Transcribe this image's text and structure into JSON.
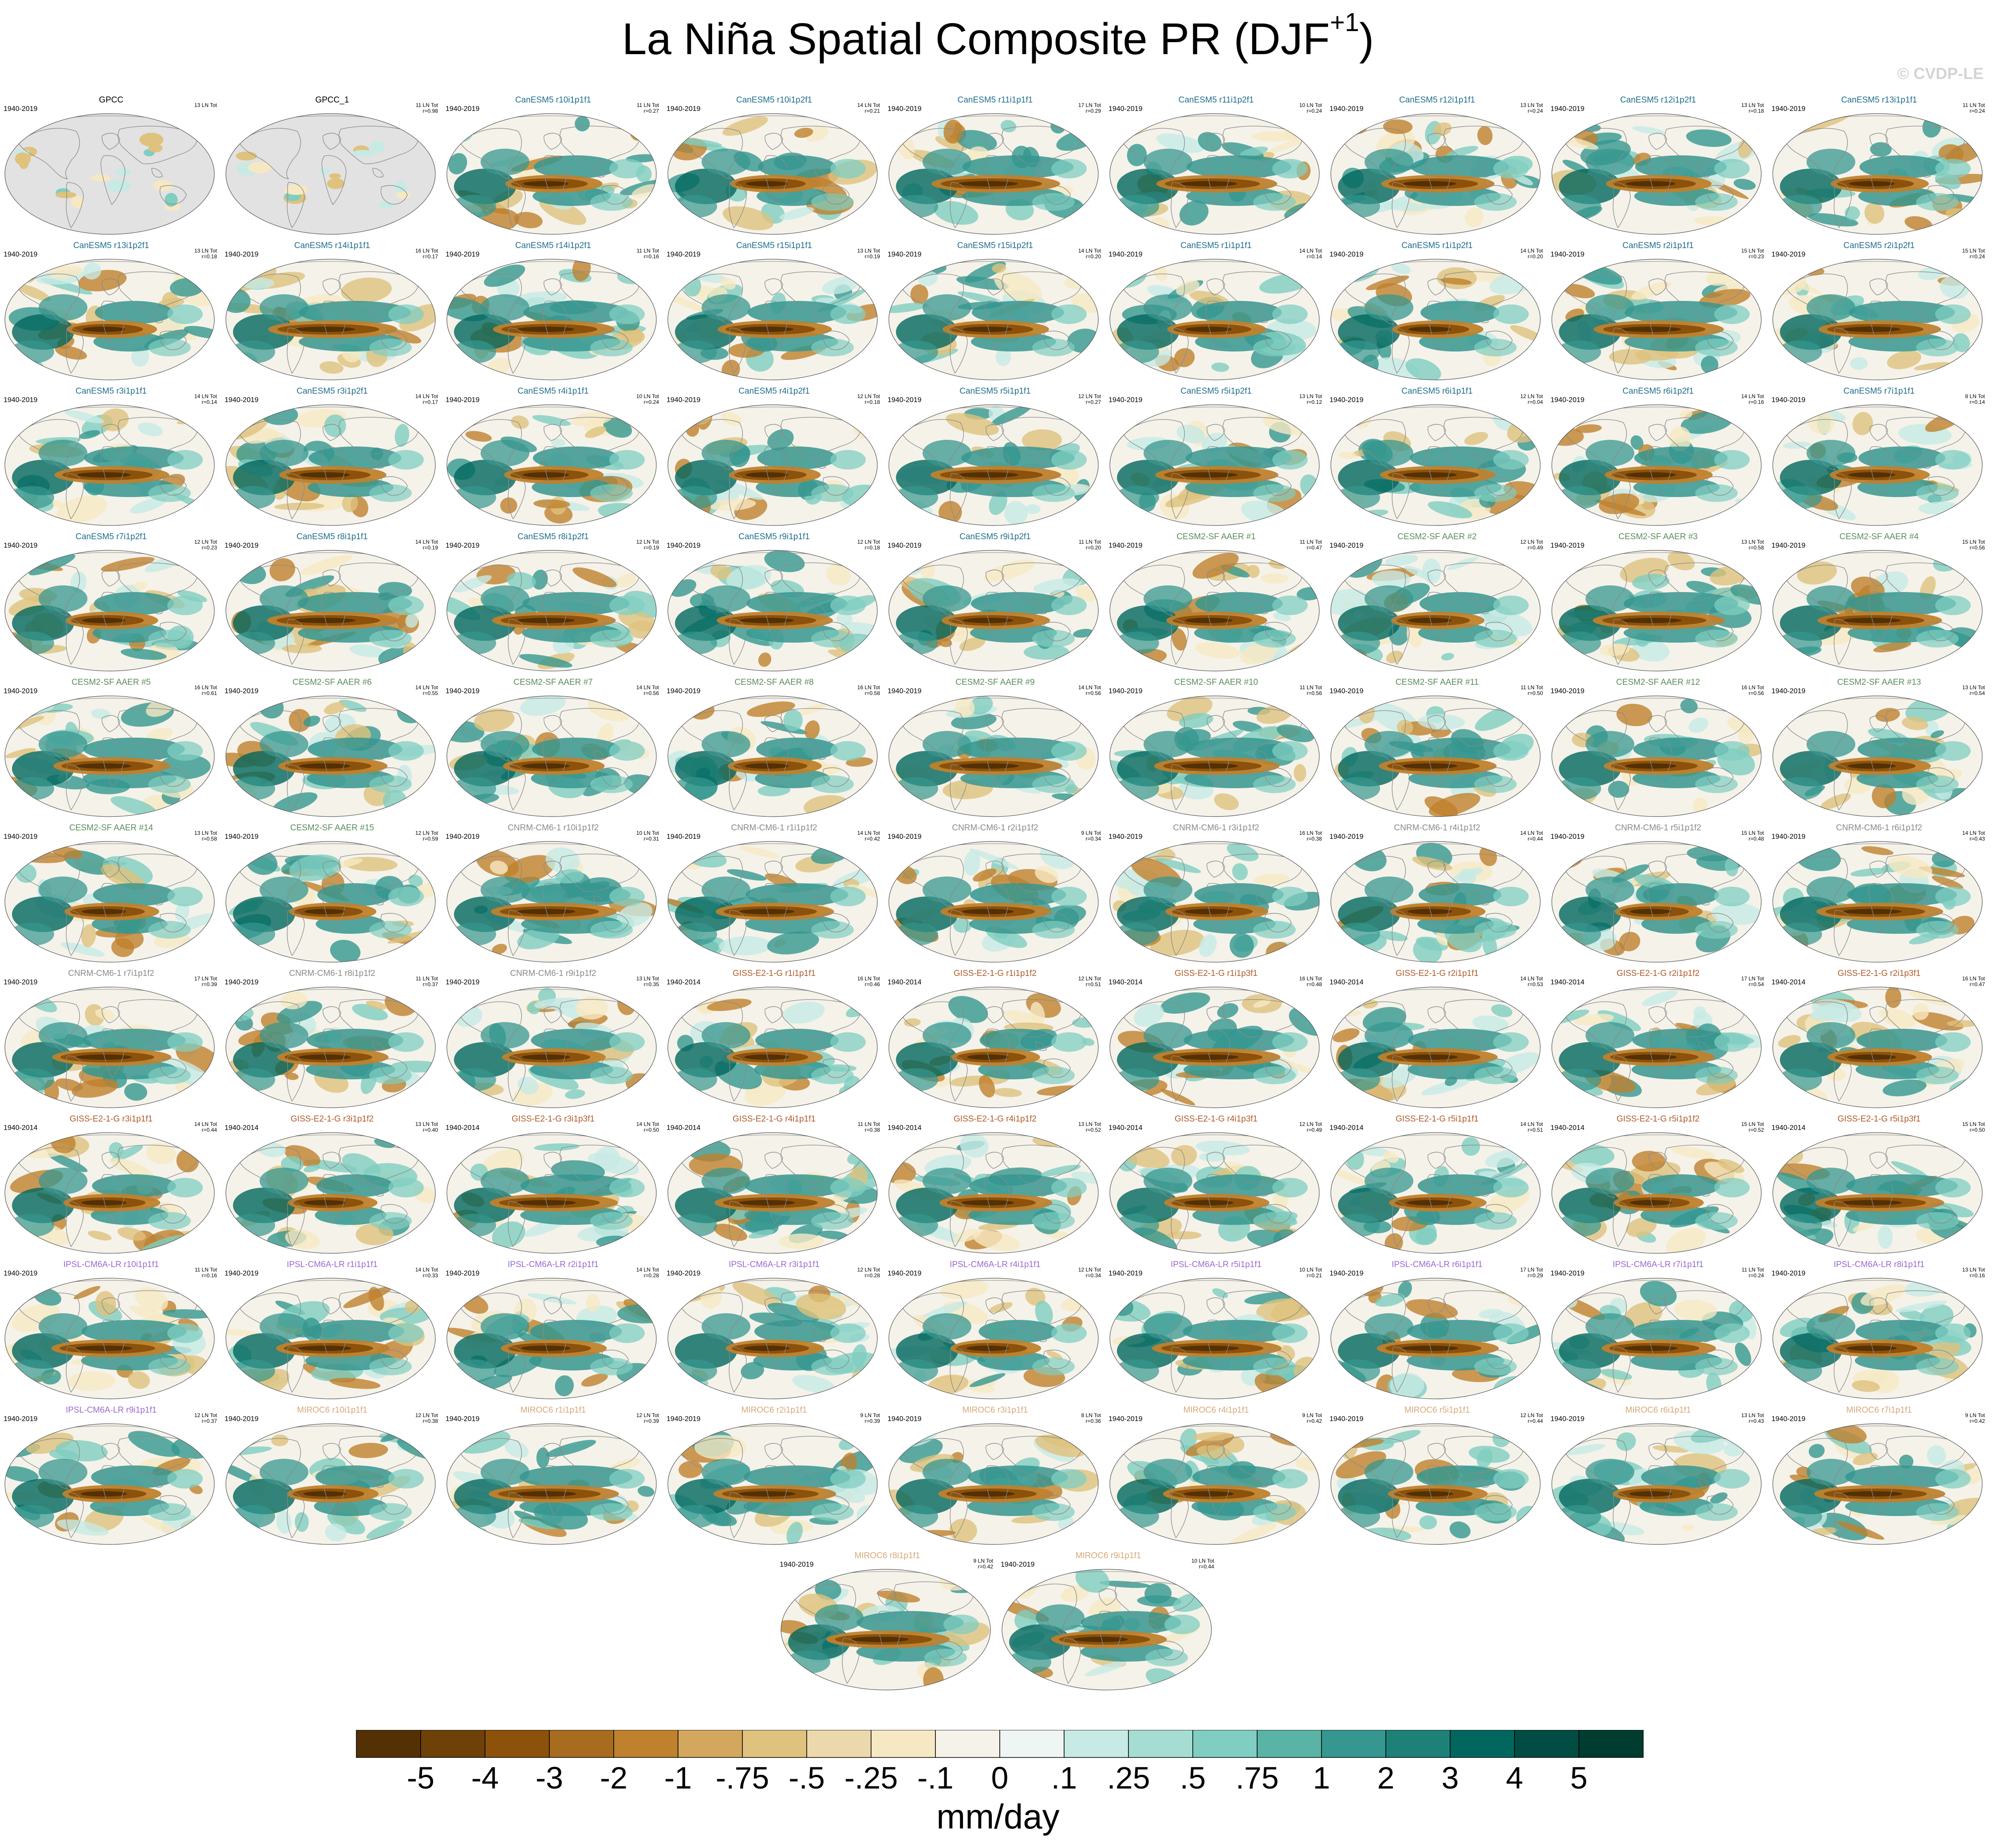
{
  "figure": {
    "title": "La Niña Spatial Composite PR (DJF",
    "title_superscript": "+1",
    "title_close": ")",
    "watermark": "© CVDP-LE"
  },
  "panels": [
    {
      "title": "GPCC",
      "years": "1940-2019",
      "count": "13 LN Tot",
      "corr": "",
      "color": "#000000",
      "obs": true
    },
    {
      "title": "GPCC_1",
      "years": "",
      "count": "11 LN Tot",
      "corr": "r=0.98",
      "color": "#000000",
      "obs": true
    },
    {
      "title": "CanESM5 r10i1p1f1",
      "years": "1940-2019",
      "count": "11 LN Tot",
      "corr": "r=0.27",
      "color": "#1f6e8c"
    },
    {
      "title": "CanESM5 r10i1p2f1",
      "years": "1940-2019",
      "count": "14 LN Tot",
      "corr": "r=0.21",
      "color": "#1f6e8c"
    },
    {
      "title": "CanESM5 r11i1p1f1",
      "years": "1940-2019",
      "count": "17 LN Tot",
      "corr": "r=0.29",
      "color": "#1f6e8c"
    },
    {
      "title": "CanESM5 r11i1p2f1",
      "years": "1940-2019",
      "count": "10 LN Tot",
      "corr": "r=0.24",
      "color": "#1f6e8c"
    },
    {
      "title": "CanESM5 r12i1p1f1",
      "years": "1940-2019",
      "count": "13 LN Tot",
      "corr": "r=0.24",
      "color": "#1f6e8c"
    },
    {
      "title": "CanESM5 r12i1p2f1",
      "years": "1940-2019",
      "count": "13 LN Tot",
      "corr": "r=0.18",
      "color": "#1f6e8c"
    },
    {
      "title": "CanESM5 r13i1p1f1",
      "years": "1940-2019",
      "count": "11 LN Tot",
      "corr": "r=0.24",
      "color": "#1f6e8c"
    },
    {
      "title": "CanESM5 r13i1p2f1",
      "years": "1940-2019",
      "count": "13 LN Tot",
      "corr": "r=0.18",
      "color": "#1f6e8c"
    },
    {
      "title": "CanESM5 r14i1p1f1",
      "years": "1940-2019",
      "count": "16 LN Tot",
      "corr": "r=0.17",
      "color": "#1f6e8c"
    },
    {
      "title": "CanESM5 r14i1p2f1",
      "years": "1940-2019",
      "count": "11 LN Tot",
      "corr": "r=0.16",
      "color": "#1f6e8c"
    },
    {
      "title": "CanESM5 r15i1p1f1",
      "years": "1940-2019",
      "count": "13 LN Tot",
      "corr": "r=0.19",
      "color": "#1f6e8c"
    },
    {
      "title": "CanESM5 r15i1p2f1",
      "years": "1940-2019",
      "count": "14 LN Tot",
      "corr": "r=0.20",
      "color": "#1f6e8c"
    },
    {
      "title": "CanESM5 r1i1p1f1",
      "years": "1940-2019",
      "count": "14 LN Tot",
      "corr": "r=0.14",
      "color": "#1f6e8c"
    },
    {
      "title": "CanESM5 r1i1p2f1",
      "years": "1940-2019",
      "count": "14 LN Tot",
      "corr": "r=0.20",
      "color": "#1f6e8c"
    },
    {
      "title": "CanESM5 r2i1p1f1",
      "years": "1940-2019",
      "count": "15 LN Tot",
      "corr": "r=0.23",
      "color": "#1f6e8c"
    },
    {
      "title": "CanESM5 r2i1p2f1",
      "years": "1940-2019",
      "count": "15 LN Tot",
      "corr": "r=0.24",
      "color": "#1f6e8c"
    },
    {
      "title": "CanESM5 r3i1p1f1",
      "years": "1940-2019",
      "count": "14 LN Tot",
      "corr": "r=0.14",
      "color": "#1f6e8c"
    },
    {
      "title": "CanESM5 r3i1p2f1",
      "years": "1940-2019",
      "count": "14 LN Tot",
      "corr": "r=0.17",
      "color": "#1f6e8c"
    },
    {
      "title": "CanESM5 r4i1p1f1",
      "years": "1940-2019",
      "count": "10 LN Tot",
      "corr": "r=0.24",
      "color": "#1f6e8c"
    },
    {
      "title": "CanESM5 r4i1p2f1",
      "years": "1940-2019",
      "count": "12 LN Tot",
      "corr": "r=0.18",
      "color": "#1f6e8c"
    },
    {
      "title": "CanESM5 r5i1p1f1",
      "years": "1940-2019",
      "count": "12 LN Tot",
      "corr": "r=0.27",
      "color": "#1f6e8c"
    },
    {
      "title": "CanESM5 r5i1p2f1",
      "years": "1940-2019",
      "count": "13 LN Tot",
      "corr": "r=0.12",
      "color": "#1f6e8c"
    },
    {
      "title": "CanESM5 r6i1p1f1",
      "years": "1940-2019",
      "count": "12 LN Tot",
      "corr": "r=0.04",
      "color": "#1f6e8c"
    },
    {
      "title": "CanESM5 r6i1p2f1",
      "years": "1940-2019",
      "count": "14 LN Tot",
      "corr": "r=0.16",
      "color": "#1f6e8c"
    },
    {
      "title": "CanESM5 r7i1p1f1",
      "years": "1940-2019",
      "count": "8 LN Tot",
      "corr": "r=0.14",
      "color": "#1f6e8c"
    },
    {
      "title": "CanESM5 r7i1p2f1",
      "years": "1940-2019",
      "count": "12 LN Tot",
      "corr": "r=0.23",
      "color": "#1f6e8c"
    },
    {
      "title": "CanESM5 r8i1p1f1",
      "years": "1940-2019",
      "count": "14 LN Tot",
      "corr": "r=0.19",
      "color": "#1f6e8c"
    },
    {
      "title": "CanESM5 r8i1p2f1",
      "years": "1940-2019",
      "count": "12 LN Tot",
      "corr": "r=0.19",
      "color": "#1f6e8c"
    },
    {
      "title": "CanESM5 r9i1p1f1",
      "years": "1940-2019",
      "count": "12 LN Tot",
      "corr": "r=0.18",
      "color": "#1f6e8c"
    },
    {
      "title": "CanESM5 r9i1p2f1",
      "years": "1940-2019",
      "count": "11 LN Tot",
      "corr": "r=0.20",
      "color": "#1f6e8c"
    },
    {
      "title": "CESM2-SF AAER #1",
      "years": "1940-2019",
      "count": "11 LN Tot",
      "corr": "r=0.47",
      "color": "#5a8c5a"
    },
    {
      "title": "CESM2-SF AAER #2",
      "years": "1940-2019",
      "count": "12 LN Tot",
      "corr": "r=0.49",
      "color": "#5a8c5a"
    },
    {
      "title": "CESM2-SF AAER #3",
      "years": "1940-2019",
      "count": "13 LN Tot",
      "corr": "r=0.58",
      "color": "#5a8c5a"
    },
    {
      "title": "CESM2-SF AAER #4",
      "years": "1940-2019",
      "count": "15 LN Tot",
      "corr": "r=0.56",
      "color": "#5a8c5a"
    },
    {
      "title": "CESM2-SF AAER #5",
      "years": "1940-2019",
      "count": "16 LN Tot",
      "corr": "r=0.61",
      "color": "#5a8c5a"
    },
    {
      "title": "CESM2-SF AAER #6",
      "years": "1940-2019",
      "count": "14 LN Tot",
      "corr": "r=0.55",
      "color": "#5a8c5a"
    },
    {
      "title": "CESM2-SF AAER #7",
      "years": "1940-2019",
      "count": "14 LN Tot",
      "corr": "r=0.56",
      "color": "#5a8c5a"
    },
    {
      "title": "CESM2-SF AAER #8",
      "years": "1940-2019",
      "count": "16 LN Tot",
      "corr": "r=0.58",
      "color": "#5a8c5a"
    },
    {
      "title": "CESM2-SF AAER #9",
      "years": "1940-2019",
      "count": "14 LN Tot",
      "corr": "r=0.56",
      "color": "#5a8c5a"
    },
    {
      "title": "CESM2-SF AAER #10",
      "years": "1940-2019",
      "count": "11 LN Tot",
      "corr": "r=0.56",
      "color": "#5a8c5a"
    },
    {
      "title": "CESM2-SF AAER #11",
      "years": "1940-2019",
      "count": "11 LN Tot",
      "corr": "r=0.50",
      "color": "#5a8c5a"
    },
    {
      "title": "CESM2-SF AAER #12",
      "years": "1940-2019",
      "count": "16 LN Tot",
      "corr": "r=0.56",
      "color": "#5a8c5a"
    },
    {
      "title": "CESM2-SF AAER #13",
      "years": "1940-2019",
      "count": "13 LN Tot",
      "corr": "r=0.54",
      "color": "#5a8c5a"
    },
    {
      "title": "CESM2-SF AAER #14",
      "years": "1940-2019",
      "count": "13 LN Tot",
      "corr": "r=0.58",
      "color": "#5a8c5a"
    },
    {
      "title": "CESM2-SF AAER #15",
      "years": "1940-2019",
      "count": "12 LN Tot",
      "corr": "r=0.59",
      "color": "#5a8c5a"
    },
    {
      "title": "CNRM-CM6-1 r10i1p1f2",
      "years": "1940-2019",
      "count": "10 LN Tot",
      "corr": "r=0.31",
      "color": "#8a8a8a"
    },
    {
      "title": "CNRM-CM6-1 r1i1p1f2",
      "years": "1940-2019",
      "count": "14 LN Tot",
      "corr": "r=0.42",
      "color": "#8a8a8a"
    },
    {
      "title": "CNRM-CM6-1 r2i1p1f2",
      "years": "1940-2019",
      "count": "9 LN Tot",
      "corr": "r=0.34",
      "color": "#8a8a8a"
    },
    {
      "title": "CNRM-CM6-1 r3i1p1f2",
      "years": "1940-2019",
      "count": "16 LN Tot",
      "corr": "r=0.38",
      "color": "#8a8a8a"
    },
    {
      "title": "CNRM-CM6-1 r4i1p1f2",
      "years": "1940-2019",
      "count": "14 LN Tot",
      "corr": "r=0.44",
      "color": "#8a8a8a"
    },
    {
      "title": "CNRM-CM6-1 r5i1p1f2",
      "years": "1940-2019",
      "count": "15 LN Tot",
      "corr": "r=0.48",
      "color": "#8a8a8a"
    },
    {
      "title": "CNRM-CM6-1 r6i1p1f2",
      "years": "1940-2019",
      "count": "14 LN Tot",
      "corr": "r=0.43",
      "color": "#8a8a8a"
    },
    {
      "title": "CNRM-CM6-1 r7i1p1f2",
      "years": "1940-2019",
      "count": "17 LN Tot",
      "corr": "r=0.39",
      "color": "#8a8a8a"
    },
    {
      "title": "CNRM-CM6-1 r8i1p1f2",
      "years": "1940-2019",
      "count": "11 LN Tot",
      "corr": "r=0.37",
      "color": "#8a8a8a"
    },
    {
      "title": "CNRM-CM6-1 r9i1p1f2",
      "years": "1940-2019",
      "count": "13 LN Tot",
      "corr": "r=0.35",
      "color": "#8a8a8a"
    },
    {
      "title": "GISS-E2-1-G r1i1p1f1",
      "years": "1940-2014",
      "count": "16 LN Tot",
      "corr": "r=0.46",
      "color": "#b05a2a"
    },
    {
      "title": "GISS-E2-1-G r1i1p1f2",
      "years": "1940-2014",
      "count": "12 LN Tot",
      "corr": "r=0.51",
      "color": "#b05a2a"
    },
    {
      "title": "GISS-E2-1-G r1i1p3f1",
      "years": "1940-2014",
      "count": "16 LN Tot",
      "corr": "r=0.48",
      "color": "#b05a2a"
    },
    {
      "title": "GISS-E2-1-G r2i1p1f1",
      "years": "1940-2014",
      "count": "14 LN Tot",
      "corr": "r=0.53",
      "color": "#b05a2a"
    },
    {
      "title": "GISS-E2-1-G r2i1p1f2",
      "years": "1940-2014",
      "count": "17 LN Tot",
      "corr": "r=0.54",
      "color": "#b05a2a"
    },
    {
      "title": "GISS-E2-1-G r2i1p3f1",
      "years": "1940-2014",
      "count": "16 LN Tot",
      "corr": "r=0.47",
      "color": "#b05a2a"
    },
    {
      "title": "GISS-E2-1-G r3i1p1f1",
      "years": "1940-2014",
      "count": "14 LN Tot",
      "corr": "r=0.44",
      "color": "#b05a2a"
    },
    {
      "title": "GISS-E2-1-G r3i1p1f2",
      "years": "1940-2014",
      "count": "13 LN Tot",
      "corr": "r=0.40",
      "color": "#b05a2a"
    },
    {
      "title": "GISS-E2-1-G r3i1p3f1",
      "years": "1940-2014",
      "count": "14 LN Tot",
      "corr": "r=0.50",
      "color": "#b05a2a"
    },
    {
      "title": "GISS-E2-1-G r4i1p1f1",
      "years": "1940-2014",
      "count": "11 LN Tot",
      "corr": "r=0.38",
      "color": "#b05a2a"
    },
    {
      "title": "GISS-E2-1-G r4i1p1f2",
      "years": "1940-2014",
      "count": "13 LN Tot",
      "corr": "r=0.52",
      "color": "#b05a2a"
    },
    {
      "title": "GISS-E2-1-G r4i1p3f1",
      "years": "1940-2014",
      "count": "12 LN Tot",
      "corr": "r=0.49",
      "color": "#b05a2a"
    },
    {
      "title": "GISS-E2-1-G r5i1p1f1",
      "years": "1940-2014",
      "count": "14 LN Tot",
      "corr": "r=0.51",
      "color": "#b05a2a"
    },
    {
      "title": "GISS-E2-1-G r5i1p1f2",
      "years": "1940-2014",
      "count": "15 LN Tot",
      "corr": "r=0.52",
      "color": "#b05a2a"
    },
    {
      "title": "GISS-E2-1-G r5i1p3f1",
      "years": "1940-2014",
      "count": "15 LN Tot",
      "corr": "r=0.50",
      "color": "#b05a2a"
    },
    {
      "title": "IPSL-CM6A-LR r10i1p1f1",
      "years": "1940-2019",
      "count": "11 LN Tot",
      "corr": "r=0.16",
      "color": "#9a6ad0"
    },
    {
      "title": "IPSL-CM6A-LR r1i1p1f1",
      "years": "1940-2019",
      "count": "14 LN Tot",
      "corr": "r=0.33",
      "color": "#9a6ad0"
    },
    {
      "title": "IPSL-CM6A-LR r2i1p1f1",
      "years": "1940-2019",
      "count": "14 LN Tot",
      "corr": "r=0.28",
      "color": "#9a6ad0"
    },
    {
      "title": "IPSL-CM6A-LR r3i1p1f1",
      "years": "1940-2019",
      "count": "12 LN Tot",
      "corr": "r=0.28",
      "color": "#9a6ad0"
    },
    {
      "title": "IPSL-CM6A-LR r4i1p1f1",
      "years": "1940-2019",
      "count": "12 LN Tot",
      "corr": "r=0.34",
      "color": "#9a6ad0"
    },
    {
      "title": "IPSL-CM6A-LR r5i1p1f1",
      "years": "1940-2019",
      "count": "10 LN Tot",
      "corr": "r=0.21",
      "color": "#9a6ad0"
    },
    {
      "title": "IPSL-CM6A-LR r6i1p1f1",
      "years": "1940-2019",
      "count": "17 LN Tot",
      "corr": "r=0.29",
      "color": "#9a6ad0"
    },
    {
      "title": "IPSL-CM6A-LR r7i1p1f1",
      "years": "1940-2019",
      "count": "11 LN Tot",
      "corr": "r=0.24",
      "color": "#9a6ad0"
    },
    {
      "title": "IPSL-CM6A-LR r8i1p1f1",
      "years": "1940-2019",
      "count": "13 LN Tot",
      "corr": "r=0.16",
      "color": "#9a6ad0"
    },
    {
      "title": "IPSL-CM6A-LR r9i1p1f1",
      "years": "1940-2019",
      "count": "12 LN Tot",
      "corr": "r=0.37",
      "color": "#9a6ad0"
    },
    {
      "title": "MIROC6 r10i1p1f1",
      "years": "1940-2019",
      "count": "12 LN Tot",
      "corr": "r=0.38",
      "color": "#d8a878"
    },
    {
      "title": "MIROC6 r1i1p1f1",
      "years": "1940-2019",
      "count": "12 LN Tot",
      "corr": "r=0.39",
      "color": "#d8a878"
    },
    {
      "title": "MIROC6 r2i1p1f1",
      "years": "1940-2019",
      "count": "9 LN Tot",
      "corr": "r=0.39",
      "color": "#d8a878"
    },
    {
      "title": "MIROC6 r3i1p1f1",
      "years": "1940-2019",
      "count": "8 LN Tot",
      "corr": "r=0.36",
      "color": "#d8a878"
    },
    {
      "title": "MIROC6 r4i1p1f1",
      "years": "1940-2019",
      "count": "9 LN Tot",
      "corr": "r=0.42",
      "color": "#d8a878"
    },
    {
      "title": "MIROC6 r5i1p1f1",
      "years": "1940-2019",
      "count": "12 LN Tot",
      "corr": "r=0.44",
      "color": "#d8a878"
    },
    {
      "title": "MIROC6 r6i1p1f1",
      "years": "1940-2019",
      "count": "13 LN Tot",
      "corr": "r=0.43",
      "color": "#d8a878"
    },
    {
      "title": "MIROC6 r7i1p1f1",
      "years": "1940-2019",
      "count": "9 LN Tot",
      "corr": "r=0.42",
      "color": "#d8a878"
    },
    {
      "title": "MIROC6 r8i1p1f1",
      "years": "1940-2019",
      "count": "9 LN Tot",
      "corr": "r=0.42",
      "color": "#d8a878"
    },
    {
      "title": "MIROC6 r9i1p1f1",
      "years": "1940-2019",
      "count": "10 LN Tot",
      "corr": "r=0.44",
      "color": "#d8a878"
    }
  ],
  "chart_data": {
    "type": "heatmap",
    "title": "La Niña Spatial Composite PR (DJF+1)",
    "units": "mm/day",
    "colorbar": {
      "levels": [
        "-5",
        "-4",
        "-3",
        "-2",
        "-1",
        "-.75",
        "-.5",
        "-.25",
        "-.1",
        "0",
        ".1",
        ".25",
        ".5",
        ".75",
        "1",
        "2",
        "3",
        "4",
        "5"
      ],
      "colors": [
        "#543005",
        "#6e4109",
        "#8c510a",
        "#a76c1d",
        "#bf812d",
        "#d4a75e",
        "#dfc27d",
        "#ecd9ab",
        "#f6e8c3",
        "#f5f2ea",
        "#eef5f3",
        "#c7eae5",
        "#a6ddd3",
        "#80cdc1",
        "#5ab4a6",
        "#35978f",
        "#1e8177",
        "#01665e",
        "#014c43",
        "#003c30"
      ]
    },
    "panel_count": 92
  }
}
